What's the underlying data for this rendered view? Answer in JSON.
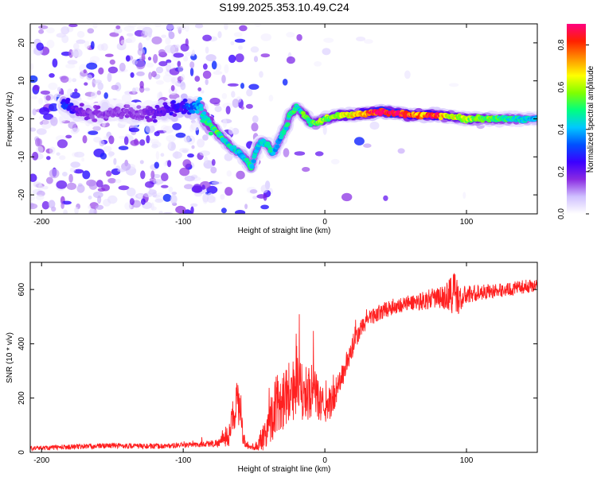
{
  "title": "S199.2025.353.10.49.C24",
  "chart_data": [
    {
      "type": "heatmap",
      "xlabel": "Height of straight line (km)",
      "ylabel": "Frequency (Hz)",
      "xlim": [
        -208,
        150
      ],
      "ylim": [
        -25,
        25
      ],
      "x_ticks": [
        -200,
        -100,
        0,
        100
      ],
      "y_ticks": [
        -20,
        -10,
        0,
        10,
        20
      ],
      "colorbar": {
        "label": "Normalized spectral amplitude",
        "range": [
          0.0,
          0.9
        ],
        "ticks": [
          "0.0",
          "0.2",
          "0.4",
          "0.6",
          "0.8"
        ],
        "tick_values": [
          0.0,
          0.2,
          0.4,
          0.6,
          0.8
        ],
        "colors": [
          "#ffffff",
          "#d0c0ff",
          "#8a2be2",
          "#3b00ff",
          "#0050ff",
          "#00c8ff",
          "#00ff80",
          "#80ff00",
          "#ffff00",
          "#ff9000",
          "#ff2000",
          "#ff0080"
        ]
      },
      "ridge": {
        "x": [
          -185,
          -175,
          -165,
          -150,
          -130,
          -115,
          -100,
          -92,
          -88,
          -85,
          -80,
          -75,
          -70,
          -65,
          -60,
          -55,
          -52,
          -50,
          -47,
          -45,
          -40,
          -37,
          -35,
          -30,
          -27,
          -25,
          -22,
          -20,
          -17,
          -15,
          -12,
          -10,
          -5,
          0,
          10,
          20,
          40,
          60,
          80,
          100,
          120,
          150
        ],
        "freq": [
          4,
          2,
          1,
          2,
          1,
          2,
          3,
          3,
          3,
          0,
          -2,
          -4,
          -6,
          -8,
          -9,
          -11,
          -13,
          -10,
          -7,
          -6,
          -7,
          -9,
          -8,
          -4,
          -2,
          1,
          2,
          3,
          2,
          1,
          0,
          -1,
          -1,
          0,
          1,
          1,
          2,
          1,
          1,
          0,
          0,
          0
        ],
        "amplitude": [
          0.3,
          0.2,
          0.15,
          0.15,
          0.15,
          0.2,
          0.25,
          0.35,
          0.4,
          0.45,
          0.5,
          0.5,
          0.45,
          0.45,
          0.4,
          0.45,
          0.45,
          0.4,
          0.45,
          0.4,
          0.45,
          0.45,
          0.4,
          0.4,
          0.45,
          0.45,
          0.5,
          0.45,
          0.45,
          0.55,
          0.5,
          0.5,
          0.55,
          0.55,
          0.6,
          0.65,
          0.8,
          0.75,
          0.7,
          0.6,
          0.5,
          0.4
        ]
      }
    },
    {
      "type": "line",
      "xlabel": "Height of straight line (km)",
      "ylabel": "SNR (10 * v/v)",
      "xlim": [
        -208,
        150
      ],
      "ylim": [
        0,
        700
      ],
      "x_ticks": [
        -200,
        -100,
        0,
        100
      ],
      "y_ticks": [
        0,
        200,
        400,
        600
      ],
      "line_color": "#ff2020",
      "series": [
        {
          "name": "SNR",
          "x": [
            -208,
            -180,
            -150,
            -120,
            -90,
            -75,
            -68,
            -65,
            -62,
            -60,
            -58,
            -55,
            -50,
            -45,
            -40,
            -35,
            -30,
            -25,
            -20,
            -15,
            -10,
            -5,
            0,
            5,
            10,
            15,
            20,
            25,
            30,
            40,
            50,
            60,
            70,
            80,
            85,
            90,
            93,
            95,
            100,
            110,
            120,
            130,
            140,
            150
          ],
          "y": [
            15,
            20,
            25,
            22,
            28,
            35,
            60,
            120,
            200,
            140,
            60,
            20,
            15,
            40,
            100,
            170,
            200,
            230,
            240,
            210,
            230,
            200,
            160,
            190,
            250,
            320,
            390,
            450,
            490,
            520,
            540,
            550,
            560,
            570,
            570,
            590,
            580,
            560,
            580,
            590,
            595,
            600,
            610,
            615
          ]
        }
      ],
      "noise_amplitude": [
        8,
        10,
        10,
        10,
        10,
        15,
        40,
        60,
        80,
        60,
        30,
        10,
        8,
        40,
        80,
        110,
        120,
        120,
        120,
        110,
        100,
        80,
        60,
        60,
        50,
        40,
        40,
        35,
        30,
        30,
        30,
        30,
        35,
        40,
        45,
        90,
        80,
        50,
        35,
        30,
        25,
        25,
        25,
        25
      ]
    }
  ]
}
